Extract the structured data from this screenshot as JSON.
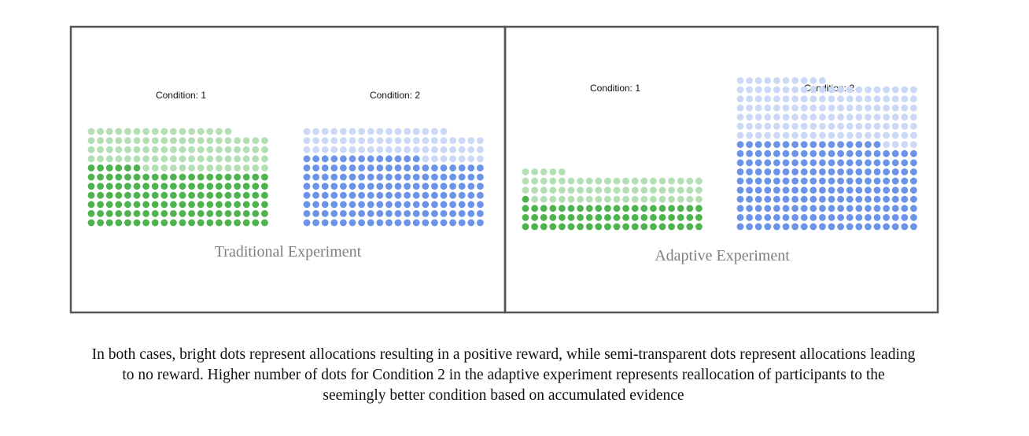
{
  "colors": {
    "green_reward": "#4db34d",
    "green_no_reward": "#b4dfb4",
    "blue_reward": "#6b93ea",
    "blue_no_reward": "#cbd9f7",
    "frame": "#555555",
    "panel_title": "#7f7f7f"
  },
  "panels": [
    {
      "title": "Traditional Experiment",
      "conditions": [
        {
          "label": "Condition: 1",
          "reward_dots": 126,
          "no_reward_dots": 90
        },
        {
          "label": "Condition: 2",
          "reward_dots": 153,
          "no_reward_dots": 63
        }
      ]
    },
    {
      "title": "Adaptive Experiment",
      "conditions": [
        {
          "label": "Condition: 1",
          "reward_dots": 61,
          "no_reward_dots": 64
        },
        {
          "label": "Condition: 2",
          "reward_dots": 196,
          "no_reward_dots": 134
        }
      ]
    }
  ],
  "caption": {
    "lines": [
      "In both cases, bright dots represent allocations resulting in a positive reward, while semi-transparent dots represent allocations leading",
      "to no reward. Higher number of dots for Condition 2 in the adaptive experiment represents reallocation of participants to the",
      "seemingly better condition based on accumulated evidence"
    ]
  }
}
